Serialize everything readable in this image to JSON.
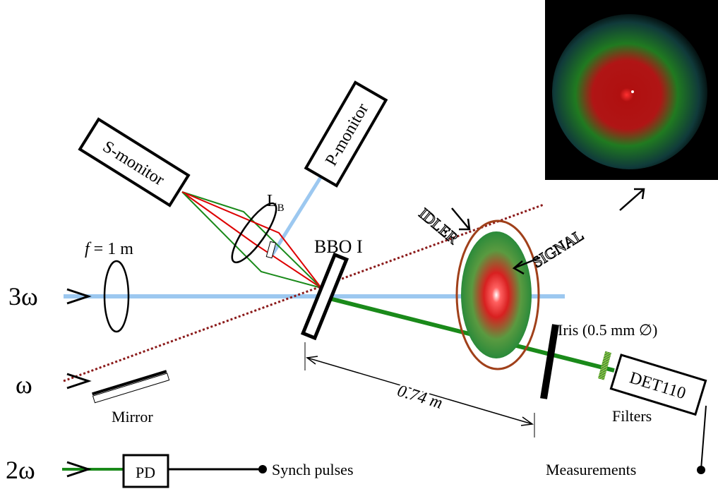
{
  "inputs": {
    "three_omega": "3ω",
    "omega": "ω",
    "two_omega": "2ω"
  },
  "lens_f": {
    "symbol": "f",
    "text": "= 1 m"
  },
  "lens_b": {
    "letter": "L",
    "subscript": "B"
  },
  "crystal": "BBO I",
  "monitors": {
    "s": "S-monitor",
    "p": "P-monitor"
  },
  "mirror": "Mirror",
  "photodiode": "PD",
  "synch": "Synch pulses",
  "labels": {
    "idler": "IDLER",
    "signal": "SIGNAL"
  },
  "distance": "0.74 m",
  "iris": "Iris (0.5 mm ∅)",
  "filters": "Filters",
  "detector": "DET110",
  "measurements": "Measurements"
}
